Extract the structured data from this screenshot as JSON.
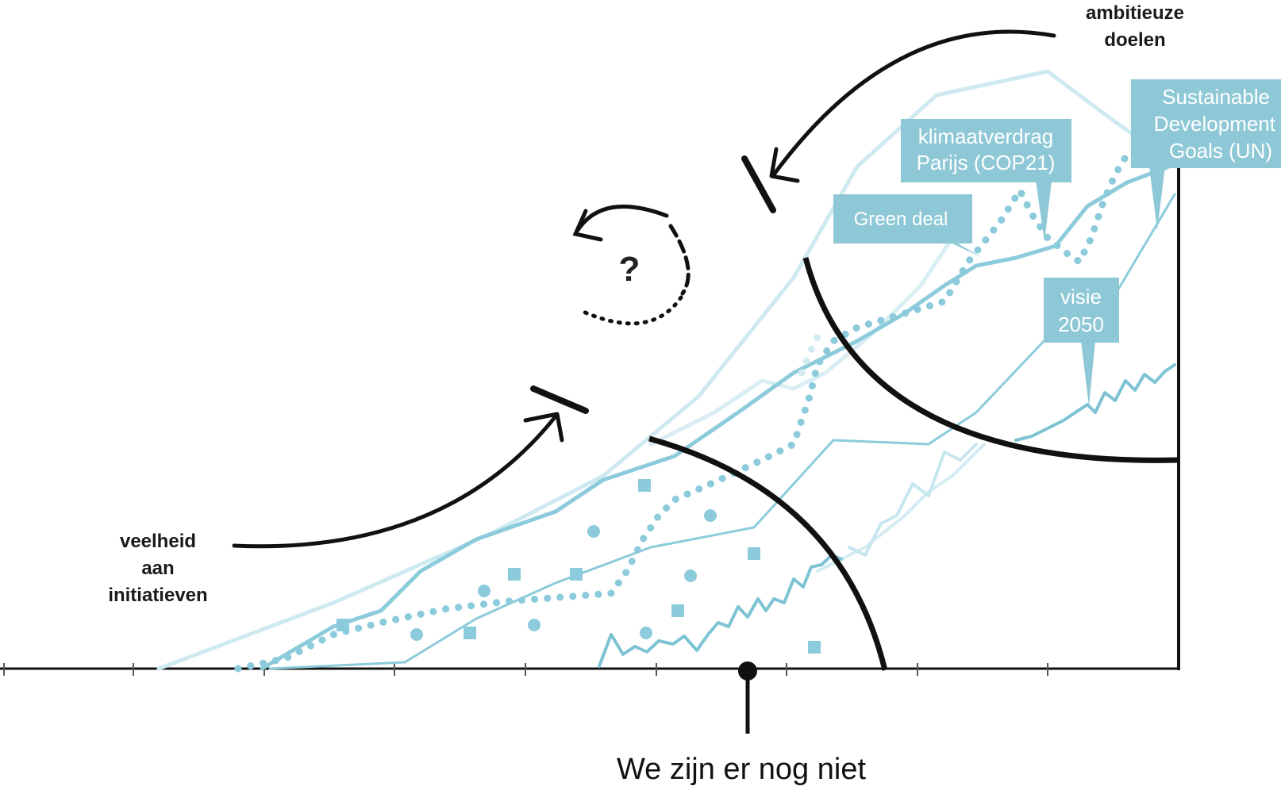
{
  "labels": {
    "ambitious_line1": "ambitieuze",
    "ambitious_line2": "doelen",
    "initiatives_line1": "veelheid",
    "initiatives_line2": "aan",
    "initiatives_line3": "initiatieven",
    "question": "?",
    "bottom": "We zijn er nog niet"
  },
  "callouts": {
    "sdg_line1": "Sustainable",
    "sdg_line2": "Development",
    "sdg_line3": "Goals (UN)",
    "paris_line1": "klimaatverdrag",
    "paris_line2": "Parijs (COP21)",
    "green_deal": "Green deal",
    "visie_line1": "visie",
    "visie_line2": "2050"
  },
  "colors": {
    "callout_fill": "#8ec8d6",
    "line_light": "#bfe3ec",
    "line_mid": "#8ccbdb",
    "line_dark": "#6bb8cc",
    "ink": "#111111"
  }
}
